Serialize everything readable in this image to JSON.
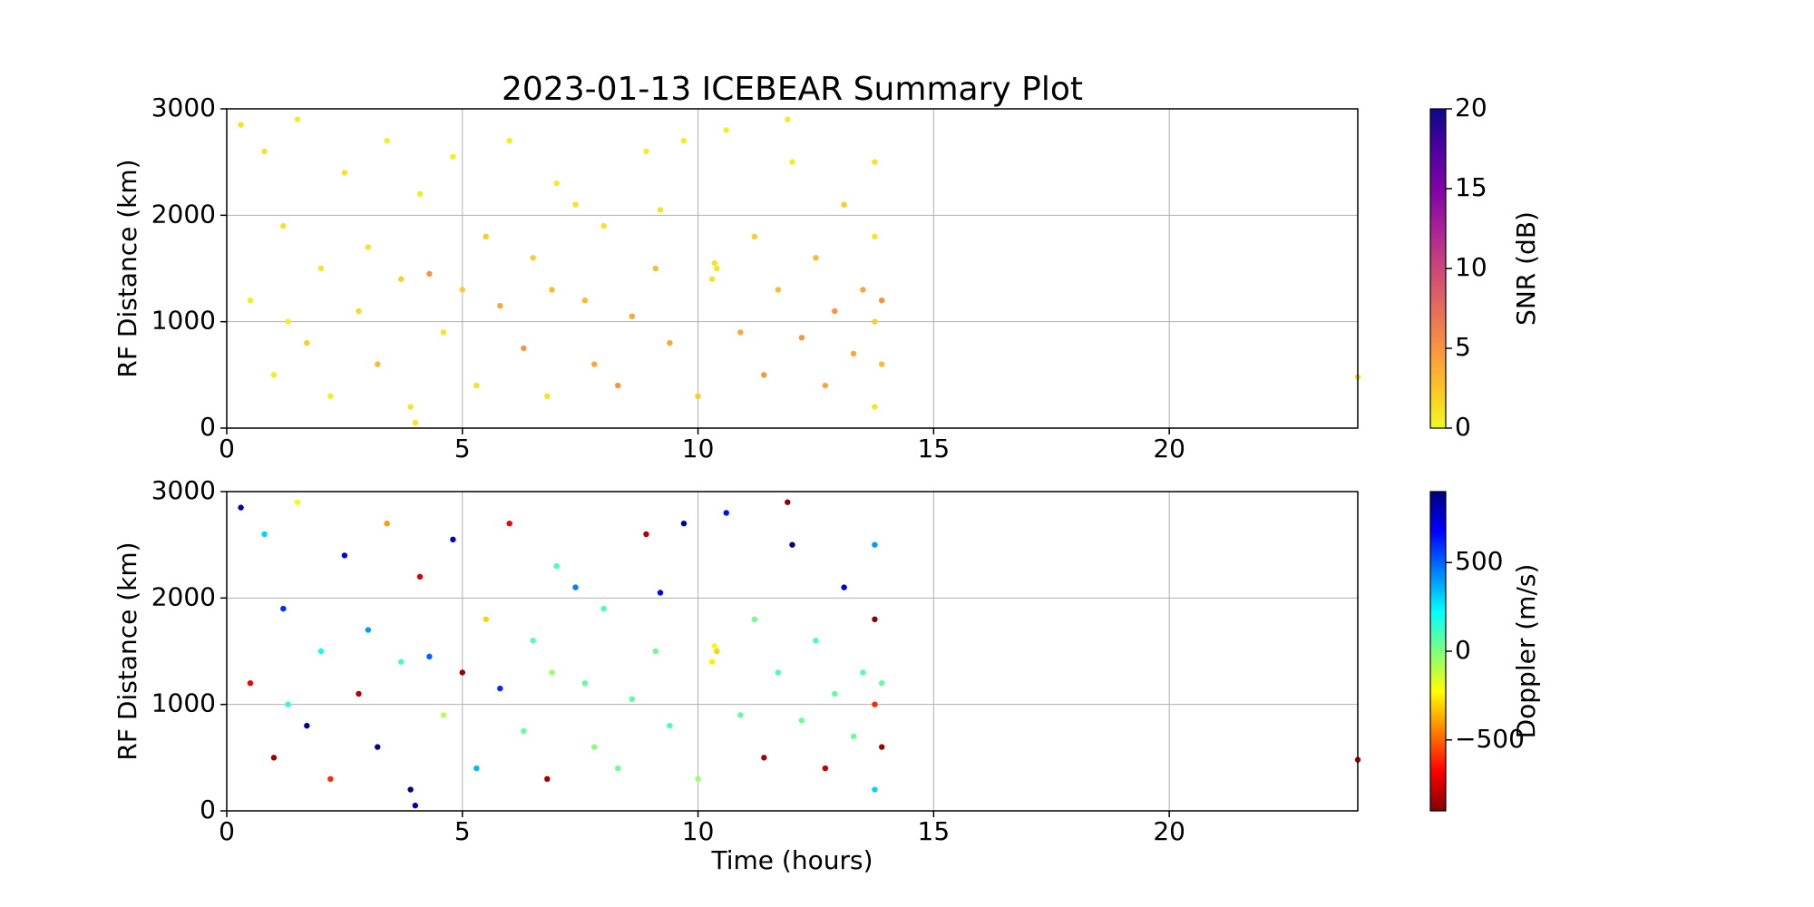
{
  "chart_data": [
    {
      "type": "scatter",
      "title": "2023-01-13 ICEBEAR Summary Plot",
      "ylabel": "RF Distance (km)",
      "colorbar_label": "SNR (dB)",
      "colormap": "plasma_r",
      "clim": [
        0,
        20
      ],
      "cticks": [
        0,
        5,
        10,
        15,
        20
      ],
      "xlim": [
        0,
        24
      ],
      "xticks": [
        0,
        5,
        10,
        15,
        20
      ],
      "ylim": [
        0,
        3000
      ],
      "yticks": [
        0,
        1000,
        2000,
        3000
      ],
      "grid": true,
      "x": [
        0.3,
        0.5,
        0.8,
        1.0,
        1.2,
        1.5,
        1.7,
        2.0,
        2.2,
        2.5,
        2.8,
        3.0,
        3.2,
        3.4,
        3.7,
        3.9,
        4.1,
        4.3,
        4.6,
        4.8,
        5.0,
        5.3,
        5.5,
        5.8,
        6.0,
        6.3,
        6.5,
        6.8,
        7.0,
        7.4,
        7.6,
        7.8,
        8.0,
        8.3,
        8.6,
        8.9,
        9.1,
        9.4,
        9.7,
        10.0,
        10.3,
        10.35,
        10.4,
        10.6,
        10.9,
        11.2,
        11.4,
        11.7,
        12.0,
        12.2,
        12.5,
        12.7,
        12.9,
        13.1,
        13.3,
        13.5,
        13.75,
        13.75,
        13.75,
        13.75,
        13.9,
        13.9,
        24.0,
        1.3,
        4.0,
        9.2,
        6.9,
        11.9
      ],
      "y": [
        2850,
        1200,
        2600,
        500,
        1900,
        2900,
        800,
        1500,
        300,
        2400,
        1100,
        1700,
        600,
        2700,
        1400,
        200,
        2200,
        1450,
        900,
        2550,
        1300,
        400,
        1800,
        1150,
        2700,
        750,
        1600,
        300,
        2300,
        2100,
        1200,
        600,
        1900,
        400,
        1050,
        2600,
        1500,
        800,
        2700,
        300,
        1400,
        1550,
        1500,
        2800,
        900,
        1800,
        500,
        1300,
        2500,
        850,
        1600,
        400,
        1100,
        2100,
        700,
        1300,
        2500,
        1800,
        1000,
        200,
        1200,
        600,
        480,
        1000,
        50,
        2050,
        1300,
        2900
      ],
      "c": [
        1,
        0.5,
        1,
        0.5,
        1,
        0.5,
        2,
        1,
        0.5,
        1,
        1.5,
        1,
        3,
        0.5,
        2,
        1,
        0.5,
        5,
        1,
        0.5,
        2,
        1,
        2,
        4,
        0.5,
        5,
        2,
        1,
        0.5,
        1,
        3,
        4,
        1,
        5,
        4,
        0.5,
        3,
        4,
        0.5,
        2,
        1,
        1,
        1,
        0.5,
        4,
        2,
        5,
        3,
        0.5,
        5,
        3,
        4,
        5,
        2,
        4,
        4,
        1,
        1,
        2,
        1,
        5,
        3,
        1,
        0.5,
        1,
        1,
        3,
        0.5
      ]
    },
    {
      "type": "scatter",
      "ylabel": "RF Distance (km)",
      "xlabel": "Time (hours)",
      "colorbar_label": "Doppler (m/s)",
      "colormap": "jet_r",
      "clim": [
        -900,
        900
      ],
      "cticks": [
        {
          "value": -500,
          "label": "−500"
        },
        0,
        500
      ],
      "xlim": [
        0,
        24
      ],
      "xticks": [
        0,
        5,
        10,
        15,
        20
      ],
      "ylim": [
        0,
        3000
      ],
      "yticks": [
        0,
        1000,
        2000,
        3000
      ],
      "grid": true,
      "x": [
        0.3,
        0.5,
        0.8,
        1.0,
        1.2,
        1.5,
        1.7,
        2.0,
        2.2,
        2.5,
        2.8,
        3.0,
        3.2,
        3.4,
        3.7,
        3.9,
        4.1,
        4.3,
        4.6,
        4.8,
        5.0,
        5.3,
        5.5,
        5.8,
        6.0,
        6.3,
        6.5,
        6.8,
        7.0,
        7.4,
        7.6,
        7.8,
        8.0,
        8.3,
        8.6,
        8.9,
        9.1,
        9.4,
        9.7,
        10.0,
        10.3,
        10.35,
        10.4,
        10.6,
        10.9,
        11.2,
        11.4,
        11.7,
        12.0,
        12.2,
        12.5,
        12.7,
        12.9,
        13.1,
        13.3,
        13.5,
        13.75,
        13.75,
        13.75,
        13.75,
        13.9,
        13.9,
        24.0,
        1.3,
        4.0,
        9.2,
        6.9,
        11.9
      ],
      "y": [
        2850,
        1200,
        2600,
        500,
        1900,
        2900,
        800,
        1500,
        300,
        2400,
        1100,
        1700,
        600,
        2700,
        1400,
        200,
        2200,
        1450,
        900,
        2550,
        1300,
        400,
        1800,
        1150,
        2700,
        750,
        1600,
        300,
        2300,
        2100,
        1200,
        600,
        1900,
        400,
        1050,
        2600,
        1500,
        800,
        2700,
        300,
        1400,
        1550,
        1500,
        2800,
        900,
        1800,
        500,
        1300,
        2500,
        850,
        1600,
        400,
        1100,
        2100,
        700,
        1300,
        2500,
        1800,
        1000,
        200,
        1200,
        600,
        480,
        1000,
        50,
        2050,
        1300,
        2900
      ],
      "c": [
        800,
        -700,
        300,
        -850,
        600,
        -200,
        850,
        200,
        -600,
        700,
        -800,
        400,
        850,
        -400,
        100,
        900,
        -750,
        500,
        -100,
        800,
        -850,
        350,
        -300,
        600,
        -700,
        50,
        80,
        -850,
        100,
        450,
        60,
        -20,
        90,
        30,
        70,
        -800,
        40,
        100,
        850,
        -50,
        -250,
        -200,
        -300,
        650,
        60,
        20,
        -850,
        80,
        900,
        40,
        110,
        -800,
        60,
        750,
        30,
        80,
        400,
        -880,
        -600,
        300,
        50,
        -850,
        -800,
        150,
        800,
        700,
        -50,
        -880
      ]
    }
  ]
}
